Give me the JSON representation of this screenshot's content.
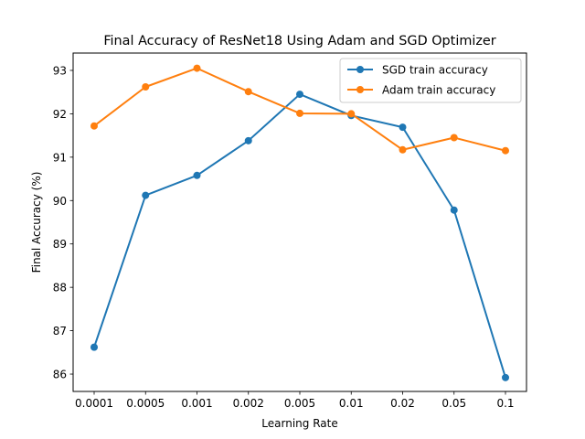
{
  "chart_data": {
    "type": "line",
    "title": "Final Accuracy of ResNet18 Using Adam and SGD Optimizer",
    "xlabel": "Learning Rate",
    "ylabel": "Final Accuracy (%)",
    "categories": [
      "0.0001",
      "0.0005",
      "0.001",
      "0.002",
      "0.005",
      "0.01",
      "0.02",
      "0.05",
      "0.1"
    ],
    "ylim": [
      85.6,
      93.4
    ],
    "yticks": [
      86,
      87,
      88,
      89,
      90,
      91,
      92,
      93
    ],
    "grid": false,
    "legend_position": "top-right",
    "series": [
      {
        "name": "SGD train accuracy",
        "color": "#1f77b4",
        "values": [
          86.62,
          90.12,
          90.58,
          91.38,
          92.45,
          91.96,
          91.69,
          89.78,
          85.92
        ]
      },
      {
        "name": "Adam train accuracy",
        "color": "#ff7f0e",
        "values": [
          91.72,
          92.62,
          93.05,
          92.51,
          92.01,
          92.0,
          91.17,
          91.45,
          91.15
        ]
      }
    ]
  }
}
